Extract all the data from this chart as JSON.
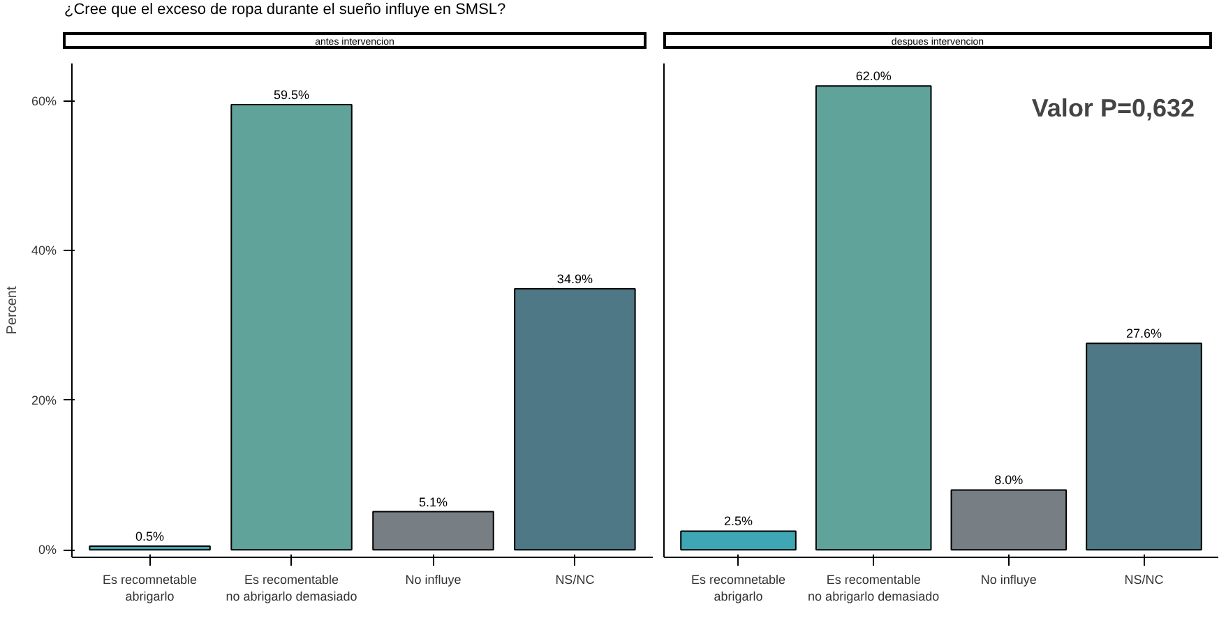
{
  "chart_data": [
    {
      "type": "bar",
      "title": "¿Cree que el exceso de ropa durante el sueño influye en SMSL?",
      "subtitle": "antes intervencion",
      "ylabel": "Percent",
      "categories": [
        "Es recomnetable\nabrigarlo",
        "Es recomentable\nno abrigarlo demasiado",
        "No influye",
        "NS/NC"
      ],
      "values": [
        0.5,
        59.5,
        5.1,
        34.9
      ],
      "value_labels": [
        "0.5%",
        "59.5%",
        "5.1%",
        "34.9%"
      ],
      "colors": [
        "#3fa6b5",
        "#5fa39b",
        "#777f84",
        "#4f7886"
      ],
      "ylim": [
        -1,
        65
      ],
      "yticks": [
        {
          "value": 0,
          "label": "0%"
        },
        {
          "value": 20,
          "label": "20%"
        },
        {
          "value": 40,
          "label": "40%"
        },
        {
          "value": 60,
          "label": "60%"
        }
      ],
      "grid": false
    },
    {
      "type": "bar",
      "subtitle": "despues intervencion",
      "categories": [
        "Es recomnetable\nabrigarlo",
        "Es recomentable\nno abrigarlo demasiado",
        "No influye",
        "NS/NC"
      ],
      "values": [
        2.5,
        62.0,
        8.0,
        27.6
      ],
      "value_labels": [
        "2.5%",
        "62.0%",
        "8.0%",
        "27.6%"
      ],
      "colors": [
        "#3fa6b5",
        "#5fa39b",
        "#777f84",
        "#4f7886"
      ],
      "ylim": [
        -1,
        65
      ],
      "grid": false,
      "tick_labels": "x",
      "annotations": [
        "Valor P=0,632"
      ]
    }
  ]
}
